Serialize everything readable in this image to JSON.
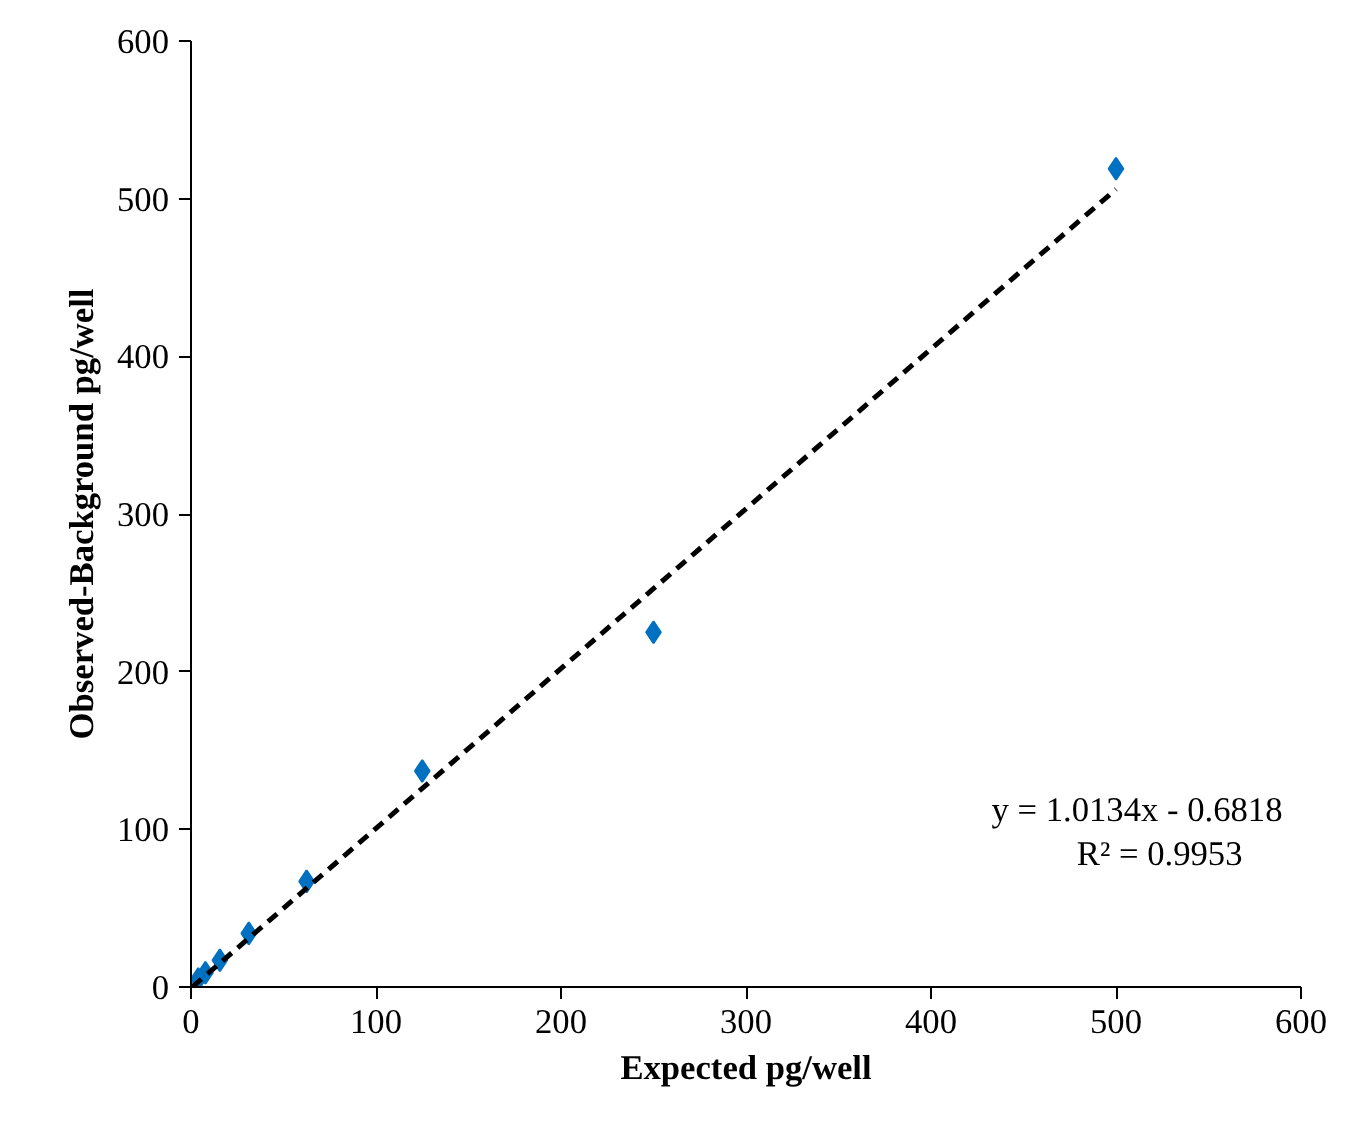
{
  "chart_data": {
    "type": "scatter",
    "xlabel": "Expected pg/well",
    "ylabel": "Observed-Background pg/well",
    "series": [
      {
        "color": "#0070c0",
        "marker": "diamond",
        "x": [
          3.9,
          7.8,
          15.6,
          31.25,
          62.5,
          125,
          250,
          500
        ],
        "values": [
          5,
          9,
          17,
          34,
          67,
          137,
          225,
          519
        ]
      },
      {
        "type": "line",
        "color": "#000000",
        "line_style": "dashed",
        "x": [
          0.7,
          500
        ],
        "values": [
          0,
          506
        ]
      }
    ],
    "xlim": [
      0,
      600
    ],
    "ylim": [
      0,
      600
    ],
    "xticks": [
      0,
      100,
      200,
      300,
      400,
      500,
      600
    ],
    "yticks": [
      0,
      100,
      200,
      300,
      400,
      500,
      600
    ],
    "grid": false,
    "annotations": [
      "y = 1.0134x - 0.6818",
      "R² = 0.9953"
    ]
  }
}
